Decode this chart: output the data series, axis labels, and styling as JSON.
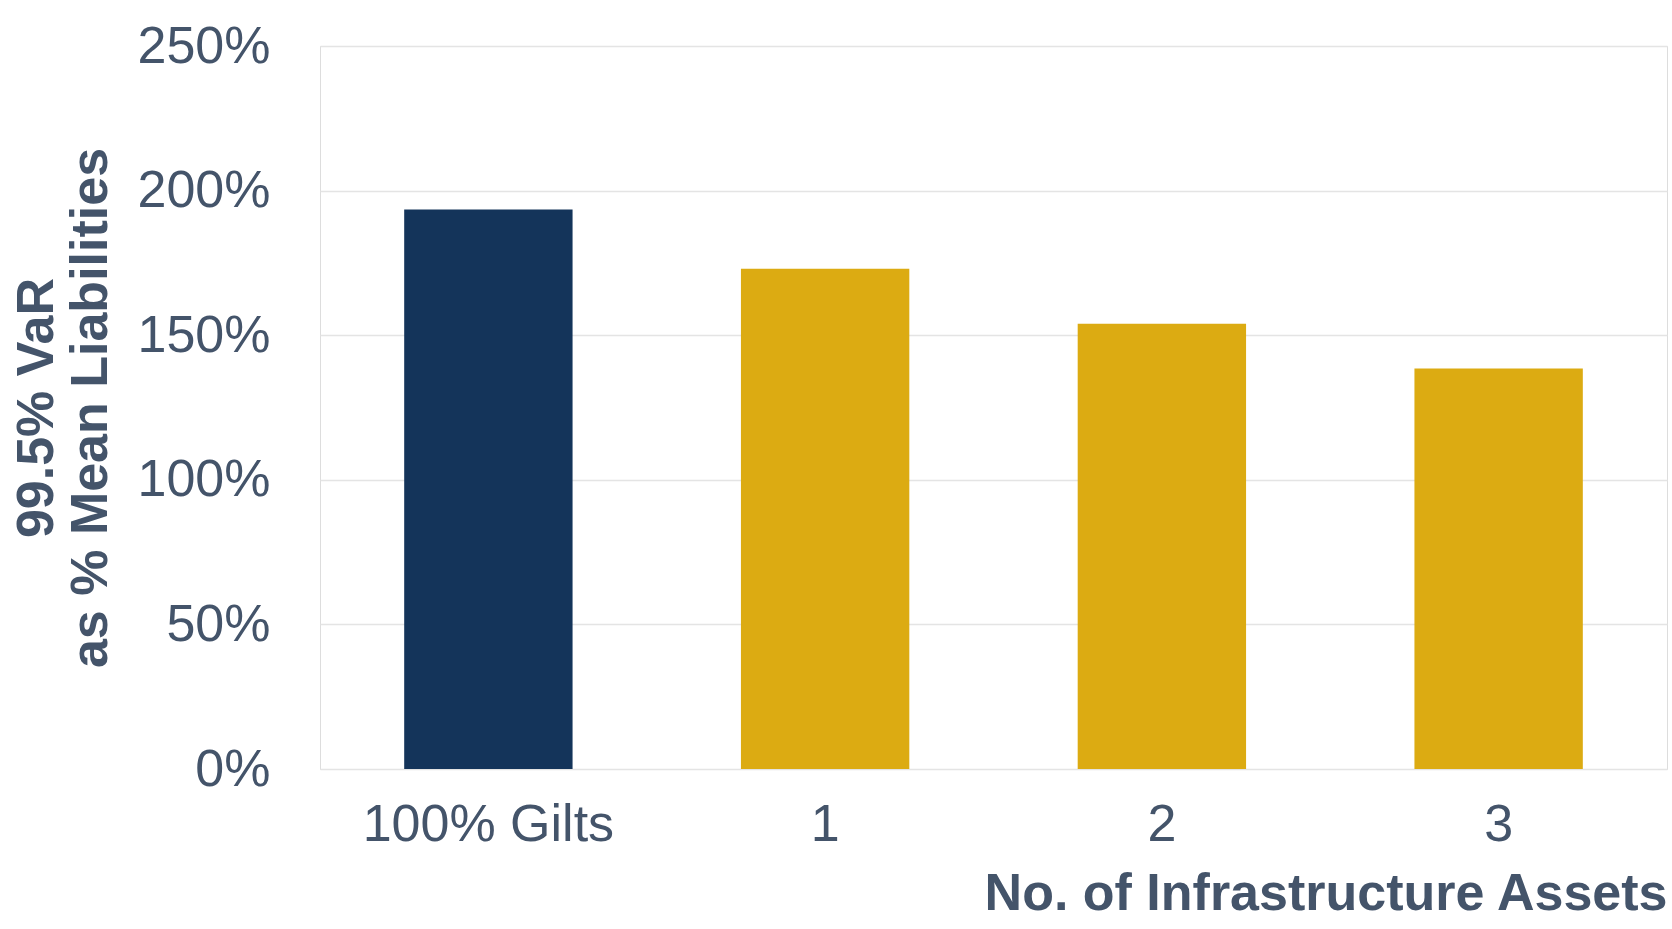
{
  "chart_data": {
    "type": "bar",
    "xlabel": "No. of Infrastructure Assets",
    "ylabel": "99.5% VaR\nas % Mean Liabilities",
    "categories": [
      "100% Gilts",
      "1",
      "2",
      "3"
    ],
    "values": [
      193.5,
      173,
      154,
      138.5
    ],
    "colors": [
      "#14345a",
      "#dcab12",
      "#dcab12",
      "#dcab12"
    ],
    "ylim": [
      0,
      250
    ],
    "yticks": [
      {
        "value": 0,
        "label": "0%"
      },
      {
        "value": 50,
        "label": "50%"
      },
      {
        "value": 100,
        "label": "100%"
      },
      {
        "value": 150,
        "label": "150%"
      },
      {
        "value": 200,
        "label": "200%"
      },
      {
        "value": 250,
        "label": "250%"
      }
    ],
    "grid": "y"
  }
}
